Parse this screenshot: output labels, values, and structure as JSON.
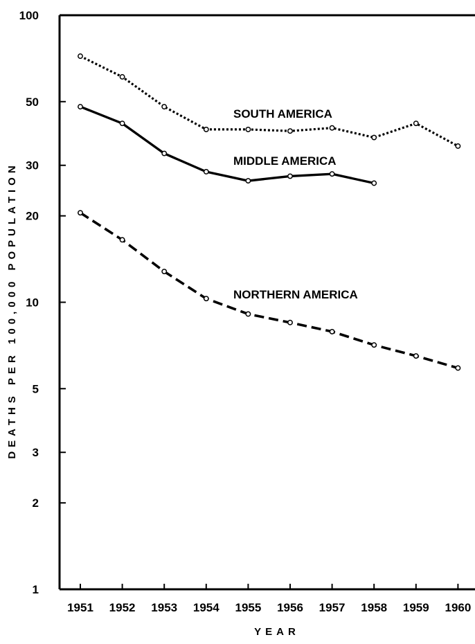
{
  "chart_data": {
    "type": "line",
    "title": "",
    "xlabel": "YEAR",
    "ylabel": "DEATHS PER 100,000 POPULATION",
    "y_scale": "log",
    "ylim": [
      1,
      100
    ],
    "y_ticks": [
      1,
      2,
      3,
      5,
      10,
      20,
      30,
      50,
      100
    ],
    "y_tick_labels": [
      "1",
      "2",
      "3",
      "5",
      "10",
      "20",
      "30",
      "50",
      "100"
    ],
    "x": [
      1951,
      1952,
      1953,
      1954,
      1955,
      1956,
      1957,
      1958,
      1959,
      1960
    ],
    "x_tick_labels": [
      "1951",
      "1952",
      "1953",
      "1954",
      "1955",
      "1956",
      "1957",
      "1958",
      "1959",
      "1960"
    ],
    "grid": false,
    "series": [
      {
        "name": "SOUTH AMERICA",
        "line_style": "dotted",
        "values": [
          72,
          61,
          48,
          40,
          40,
          39.5,
          40.5,
          37.5,
          42,
          35
        ]
      },
      {
        "name": "MIDDLE AMERICA",
        "line_style": "solid",
        "values": [
          48,
          42,
          33,
          28.5,
          26.5,
          27.5,
          28,
          26,
          null,
          null
        ]
      },
      {
        "name": "NORTHERN AMERICA",
        "line_style": "dashed",
        "values": [
          20.5,
          16.5,
          12.8,
          10.3,
          9.1,
          8.5,
          7.9,
          7.1,
          6.5,
          5.9
        ]
      }
    ]
  }
}
